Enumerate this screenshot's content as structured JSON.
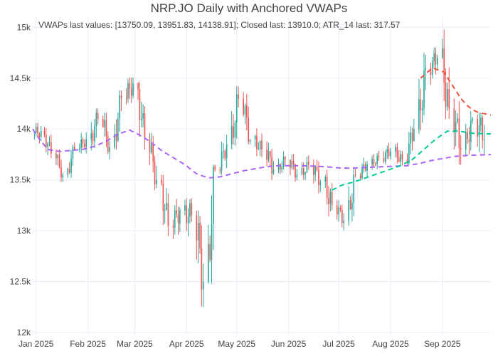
{
  "chart_data": {
    "type": "candlestick",
    "title": "NRP.JO Daily with Anchored VWAPs",
    "annotation": "VWAPs last values: [13750.09, 13951.83, 14138.91]; Closed last: 13910.0; ATR_14 last: 317.57",
    "x_ticks": [
      "Jan 2025",
      "Feb 2025",
      "Mar 2025",
      "Apr 2025",
      "May 2025",
      "Jun 2025",
      "Jul 2025",
      "Aug 2025",
      "Sep 2025"
    ],
    "y_ticks": [
      "12k",
      "12.5k",
      "13k",
      "13.5k",
      "14k",
      "14.5k",
      "15k"
    ],
    "y_tick_values": [
      12000,
      12500,
      13000,
      13500,
      14000,
      14500,
      15000
    ],
    "ylim": [
      11980,
      15100
    ],
    "date_range": [
      "2024-12-30",
      "2025-09-30"
    ],
    "grid": true,
    "colors": {
      "up": "#26a69a",
      "down": "#ef5350",
      "vwap_1": "#ab63fa",
      "vwap_2": "#00cc96",
      "vwap_3": "#ef553b",
      "grid": "#e5ecf6",
      "plot_bg": "#ffffff"
    },
    "candles_weekly": [
      [
        "2024-12-31",
        13960,
        13980,
        14060,
        13800
      ],
      [
        "2025-01-06",
        13980,
        13760,
        14020,
        13700
      ],
      [
        "2025-01-13",
        13760,
        13550,
        13800,
        13480
      ],
      [
        "2025-01-20",
        13550,
        13800,
        13870,
        13520
      ],
      [
        "2025-01-27",
        13800,
        13900,
        14020,
        13760
      ],
      [
        "2025-02-03",
        13900,
        14100,
        14200,
        13750
      ],
      [
        "2025-02-10",
        14100,
        13820,
        14160,
        13700
      ],
      [
        "2025-02-17",
        13820,
        14300,
        14380,
        13800
      ],
      [
        "2025-02-24",
        14300,
        14450,
        14520,
        14100
      ],
      [
        "2025-03-03",
        14450,
        13900,
        14460,
        13800
      ],
      [
        "2025-03-10",
        13900,
        13500,
        13960,
        13400
      ],
      [
        "2025-03-17",
        13500,
        13050,
        13550,
        12950
      ],
      [
        "2025-03-24",
        13050,
        13200,
        13350,
        12900
      ],
      [
        "2025-03-31",
        13200,
        13150,
        13320,
        12800
      ],
      [
        "2025-04-07",
        13150,
        12500,
        13200,
        12250
      ],
      [
        "2025-04-14",
        12500,
        13600,
        13650,
        12480
      ],
      [
        "2025-04-21",
        13600,
        13850,
        13960,
        13550
      ],
      [
        "2025-04-28",
        13850,
        14300,
        14420,
        13800
      ],
      [
        "2025-05-05",
        14300,
        13900,
        14360,
        13850
      ],
      [
        "2025-05-12",
        13900,
        13800,
        14030,
        13700
      ],
      [
        "2025-05-19",
        13800,
        13600,
        13880,
        13500
      ],
      [
        "2025-05-26",
        13600,
        13700,
        13800,
        13560
      ],
      [
        "2025-06-02",
        13700,
        13550,
        13780,
        13480
      ],
      [
        "2025-06-09",
        13550,
        13650,
        13760,
        13500
      ],
      [
        "2025-06-16",
        13650,
        13480,
        13700,
        13350
      ],
      [
        "2025-06-23",
        13480,
        13250,
        13600,
        13100
      ],
      [
        "2025-06-30",
        13250,
        13100,
        13300,
        13000
      ],
      [
        "2025-07-07",
        13100,
        13550,
        13620,
        13050
      ],
      [
        "2025-07-14",
        13550,
        13650,
        13760,
        13500
      ],
      [
        "2025-07-21",
        13650,
        13720,
        13800,
        13600
      ],
      [
        "2025-07-28",
        13720,
        13780,
        13900,
        13650
      ],
      [
        "2025-08-04",
        13780,
        13700,
        13920,
        13640
      ],
      [
        "2025-08-11",
        13700,
        14000,
        14100,
        13650
      ],
      [
        "2025-08-18",
        14000,
        14600,
        14750,
        13950
      ],
      [
        "2025-08-25",
        14600,
        14700,
        14800,
        14400
      ],
      [
        "2025-09-01",
        14700,
        14200,
        14980,
        14100
      ],
      [
        "2025-09-08",
        14200,
        13800,
        14300,
        13600
      ],
      [
        "2025-09-15",
        13800,
        14100,
        14200,
        13700
      ],
      [
        "2025-09-22",
        14100,
        13900,
        14160,
        13550
      ]
    ],
    "series": [
      {
        "key": "vwap_1",
        "values": [
          [
            "2024-12-30",
            14000
          ],
          [
            "2025-01-03",
            13900
          ],
          [
            "2025-01-08",
            13800
          ],
          [
            "2025-01-15",
            13780
          ],
          [
            "2025-01-22",
            13790
          ],
          [
            "2025-01-29",
            13800
          ],
          [
            "2025-02-05",
            13830
          ],
          [
            "2025-02-12",
            13880
          ],
          [
            "2025-02-19",
            13950
          ],
          [
            "2025-02-26",
            13990
          ],
          [
            "2025-03-03",
            13950
          ],
          [
            "2025-03-10",
            13880
          ],
          [
            "2025-03-17",
            13790
          ],
          [
            "2025-03-24",
            13720
          ],
          [
            "2025-03-31",
            13650
          ],
          [
            "2025-04-07",
            13560
          ],
          [
            "2025-04-14",
            13520
          ],
          [
            "2025-04-21",
            13530
          ],
          [
            "2025-04-28",
            13560
          ],
          [
            "2025-05-05",
            13590
          ],
          [
            "2025-05-12",
            13610
          ],
          [
            "2025-05-19",
            13630
          ],
          [
            "2025-05-26",
            13640
          ],
          [
            "2025-06-02",
            13640
          ],
          [
            "2025-06-09",
            13640
          ],
          [
            "2025-06-16",
            13635
          ],
          [
            "2025-06-23",
            13630
          ],
          [
            "2025-06-30",
            13620
          ],
          [
            "2025-07-07",
            13615
          ],
          [
            "2025-07-14",
            13620
          ],
          [
            "2025-07-21",
            13625
          ],
          [
            "2025-07-28",
            13630
          ],
          [
            "2025-08-04",
            13635
          ],
          [
            "2025-08-11",
            13640
          ],
          [
            "2025-08-18",
            13660
          ],
          [
            "2025-08-25",
            13690
          ],
          [
            "2025-09-01",
            13710
          ],
          [
            "2025-09-08",
            13730
          ],
          [
            "2025-09-15",
            13740
          ],
          [
            "2025-09-30",
            13750.09
          ]
        ]
      },
      {
        "key": "vwap_2",
        "values": [
          [
            "2025-06-27",
            13400
          ],
          [
            "2025-07-03",
            13450
          ],
          [
            "2025-07-10",
            13480
          ],
          [
            "2025-07-17",
            13520
          ],
          [
            "2025-07-24",
            13560
          ],
          [
            "2025-07-31",
            13600
          ],
          [
            "2025-08-07",
            13640
          ],
          [
            "2025-08-14",
            13700
          ],
          [
            "2025-08-21",
            13800
          ],
          [
            "2025-08-28",
            13900
          ],
          [
            "2025-09-04",
            13980
          ],
          [
            "2025-09-11",
            13980
          ],
          [
            "2025-09-18",
            13960
          ],
          [
            "2025-09-25",
            13955
          ],
          [
            "2025-09-30",
            13951.83
          ]
        ]
      },
      {
        "key": "vwap_3",
        "values": [
          [
            "2025-08-19",
            14500
          ],
          [
            "2025-08-26",
            14600
          ],
          [
            "2025-09-02",
            14560
          ],
          [
            "2025-09-05",
            14480
          ],
          [
            "2025-09-09",
            14380
          ],
          [
            "2025-09-12",
            14300
          ],
          [
            "2025-09-16",
            14230
          ],
          [
            "2025-09-19",
            14190
          ],
          [
            "2025-09-23",
            14160
          ],
          [
            "2025-09-30",
            14138.91
          ]
        ]
      }
    ]
  }
}
